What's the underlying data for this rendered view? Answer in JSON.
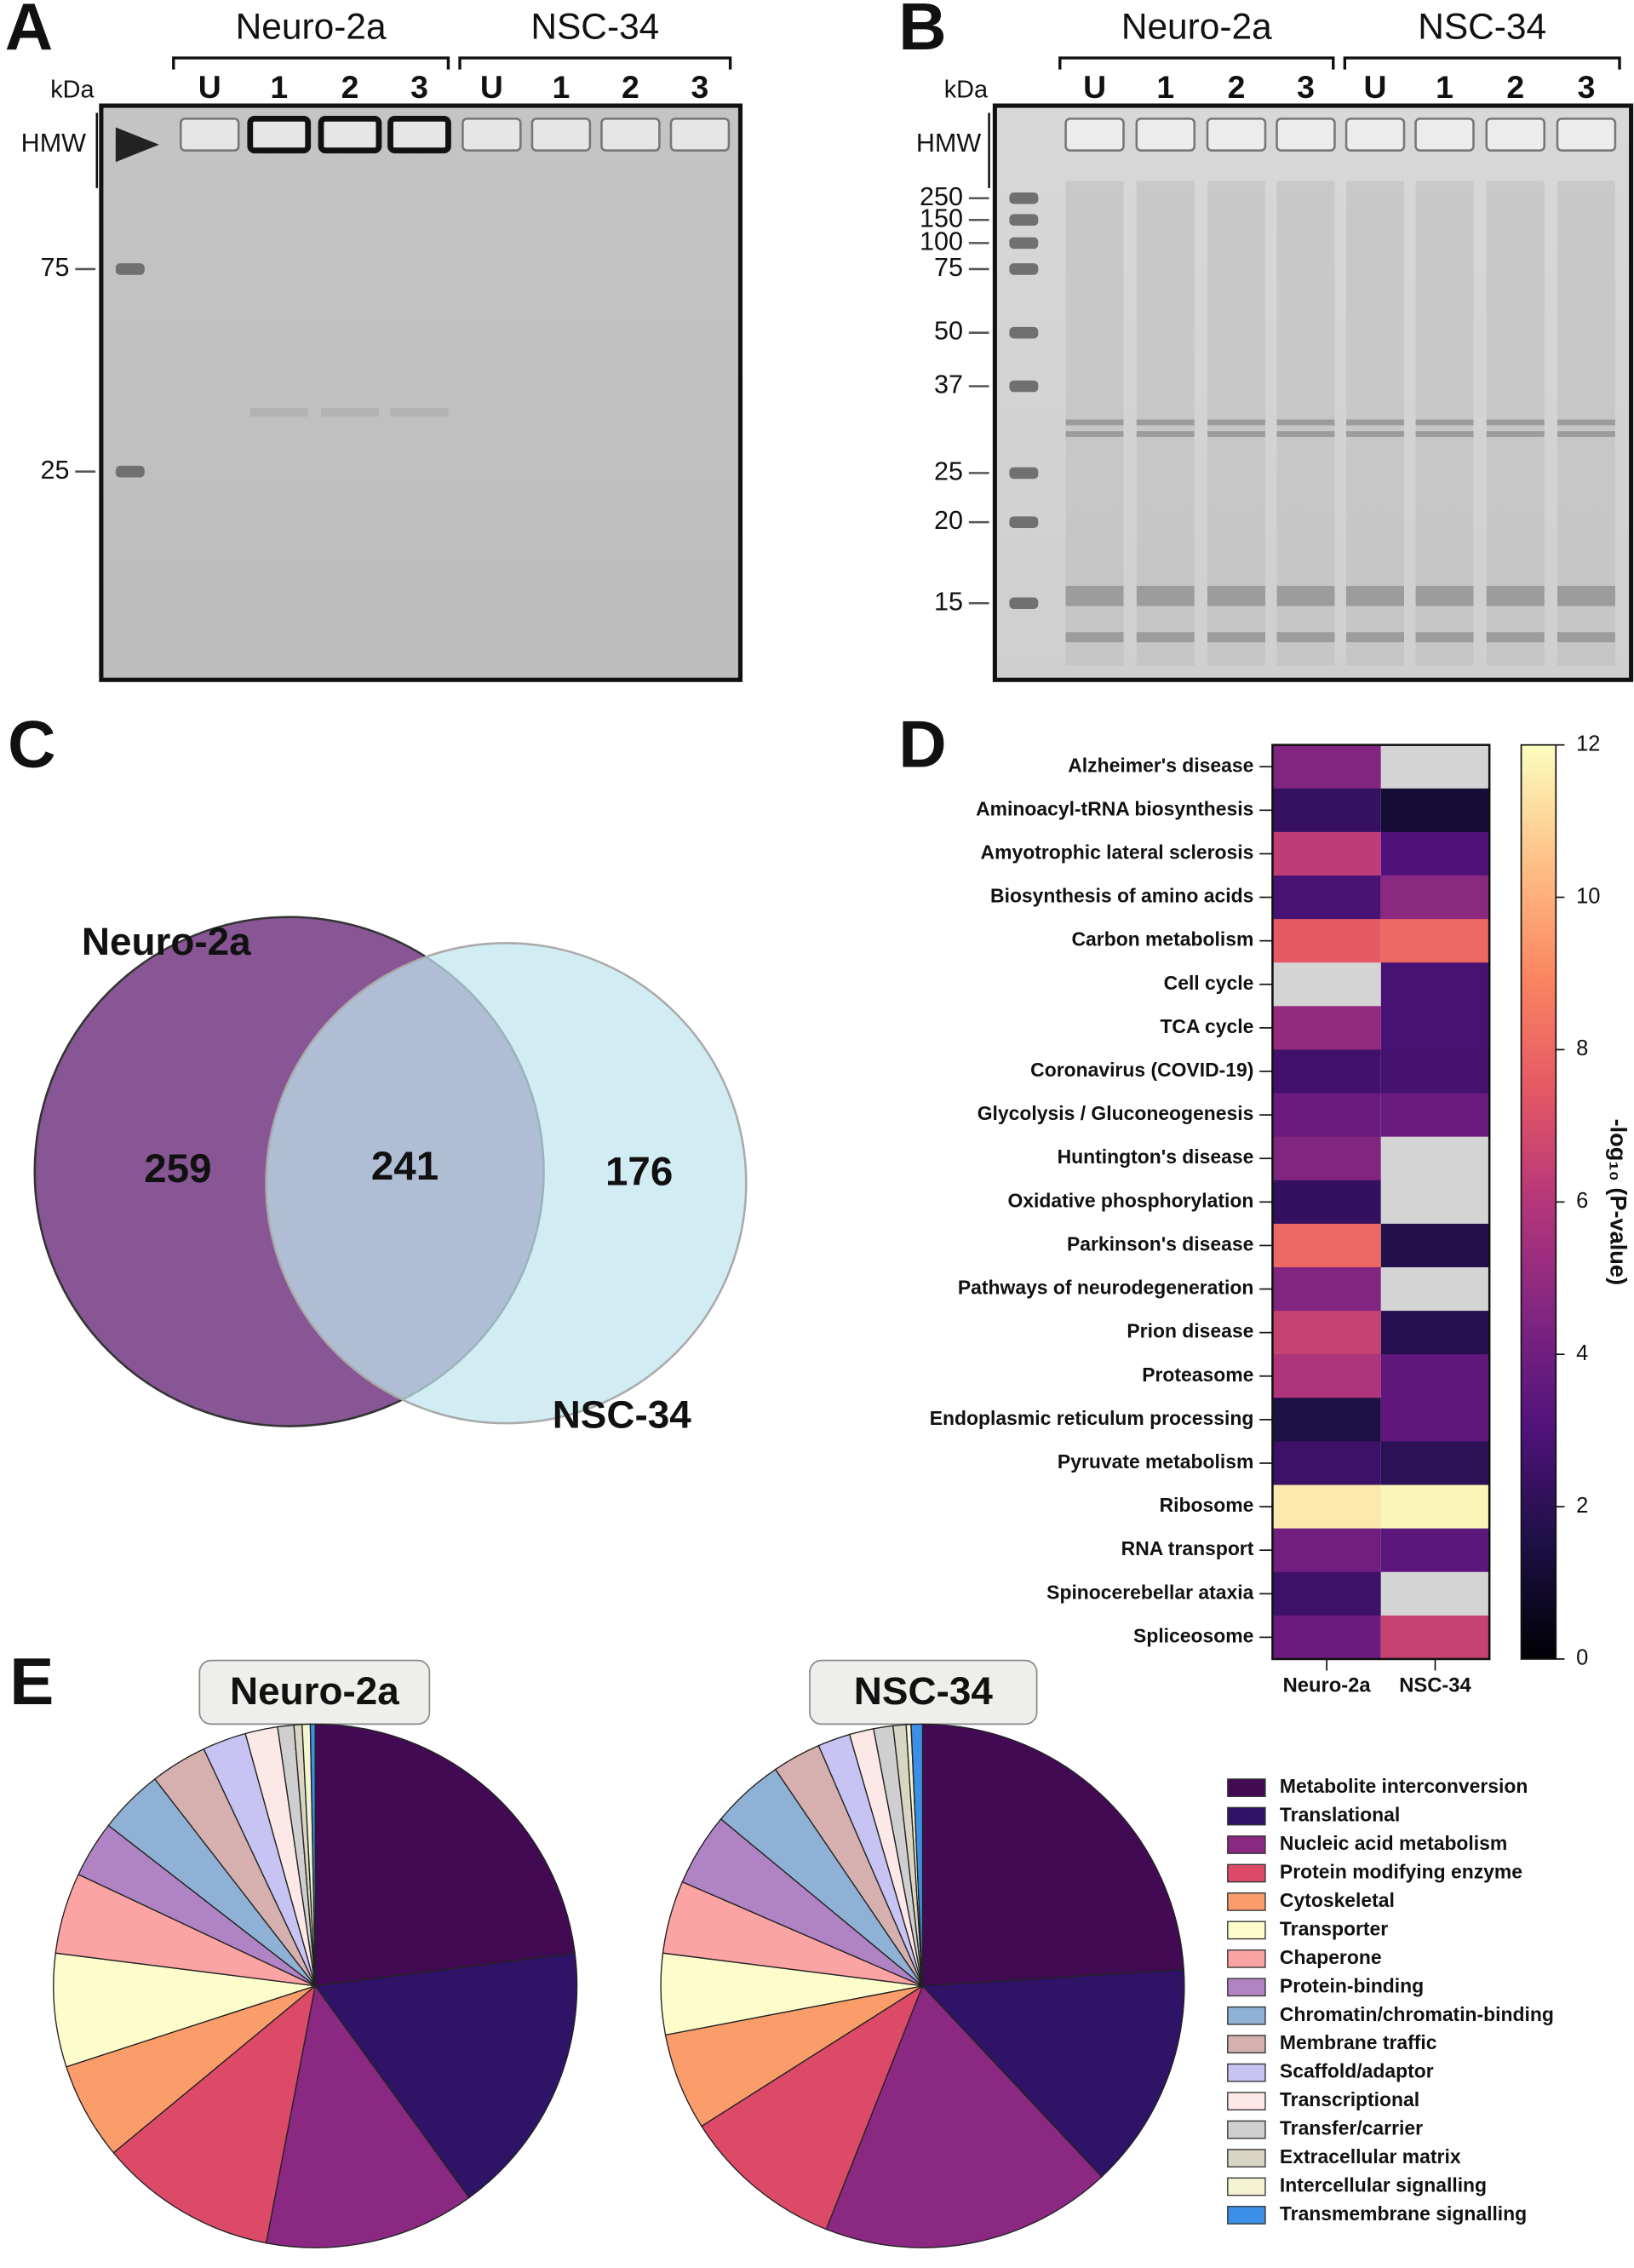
{
  "panel_letters": [
    "A",
    "B",
    "C",
    "D",
    "E"
  ],
  "gels": [
    {
      "kda": "kDa",
      "hmw": "HMW",
      "groups": [
        "Neuro-2a",
        "NSC-34"
      ],
      "lanes": [
        "U",
        "1",
        "2",
        "3",
        "U",
        "1",
        "2",
        "3"
      ],
      "markers": [
        75,
        25
      ]
    },
    {
      "kda": "kDa",
      "hmw": "HMW",
      "groups": [
        "Neuro-2a",
        "NSC-34"
      ],
      "lanes": [
        "U",
        "1",
        "2",
        "3",
        "U",
        "1",
        "2",
        "3"
      ],
      "markers": [
        250,
        150,
        100,
        75,
        50,
        37,
        25,
        20,
        15
      ]
    }
  ],
  "venn": {
    "sets": [
      "Neuro-2a",
      "NSC-34"
    ],
    "values": [
      259,
      241,
      176
    ],
    "colors": [
      "#6a2c7a",
      "#bfe6ef"
    ]
  },
  "heatmap": {
    "type": "heatmap",
    "rows": [
      "Alzheimer's disease",
      "Aminoacyl-tRNA biosynthesis",
      "Amyotrophic lateral sclerosis",
      "Biosynthesis of amino acids",
      "Carbon metabolism",
      "Cell cycle",
      "TCA cycle",
      "Coronavirus (COVID-19)",
      "Glycolysis / Gluconeogenesis",
      "Huntington's disease",
      "Oxidative phosphorylation",
      "Parkinson's disease",
      "Pathways of neurodegeneration",
      "Prion disease",
      "Proteasome",
      "Endoplasmic reticulum processing",
      "Pyruvate metabolism",
      "Ribosome",
      "RNA transport",
      "Spinocerebellar ataxia",
      "Spliceosome"
    ],
    "columns": [
      "Neuro-2a",
      "NSC-34"
    ],
    "values": [
      [
        4.5,
        null
      ],
      [
        2.3,
        1.2
      ],
      [
        6.3,
        3.0
      ],
      [
        2.8,
        4.8
      ],
      [
        7.5,
        8.0
      ],
      [
        null,
        2.8
      ],
      [
        5.0,
        2.8
      ],
      [
        2.6,
        2.7
      ],
      [
        3.8,
        3.8
      ],
      [
        4.5,
        null
      ],
      [
        2.2,
        null
      ],
      [
        8.0,
        1.7
      ],
      [
        4.5,
        null
      ],
      [
        6.5,
        1.8
      ],
      [
        5.8,
        3.5
      ],
      [
        1.5,
        3.5
      ],
      [
        2.5,
        2.0
      ],
      [
        11.5,
        11.8
      ],
      [
        4.0,
        3.4
      ],
      [
        2.5,
        null
      ],
      [
        3.8,
        6.5
      ]
    ],
    "clim": [
      0,
      12
    ],
    "cticks": [
      0,
      2,
      4,
      6,
      8,
      10,
      12
    ],
    "colorbar_label": "-log₁₀ (P-value)",
    "null_color": "#d4d4d4",
    "colormap": [
      "#000004",
      "#1c1044",
      "#4f127b",
      "#812581",
      "#b5367a",
      "#e55964",
      "#fb8761",
      "#fec287",
      "#fcfdbf"
    ]
  },
  "pies": {
    "type": "pie",
    "categories": [
      "Metabolite interconversion",
      "Translational",
      "Nucleic acid metabolism",
      "Protein modifying enzyme",
      "Cytoskeletal",
      "Transporter",
      "Chaperone",
      "Protein-binding",
      "Chromatin/chromatin-binding",
      "Membrane traffic",
      "Scaffold/adaptor",
      "Transcriptional",
      "Transfer/carrier",
      "Extracellular matrix",
      "Intercellular signalling",
      "Transmembrane signalling"
    ],
    "colors": [
      "#420a53",
      "#2f1366",
      "#8a2882",
      "#dc4a68",
      "#fb9d6b",
      "#fdfccb",
      "#fca4a4",
      "#b083c4",
      "#8fb1d6",
      "#d5b0ae",
      "#c7c3f2",
      "#fde8e8",
      "#cfcfcf",
      "#d8d5c2",
      "#f4f4d2",
      "#3b8fe6"
    ],
    "charts": [
      {
        "title": "Neuro-2a",
        "values": [
          23,
          17,
          13,
          11,
          6,
          7,
          5,
          3.5,
          4,
          3.5,
          2.7,
          2,
          1,
          0.5,
          0.5,
          0.3
        ]
      },
      {
        "title": "NSC-34",
        "values": [
          24,
          14,
          18,
          10,
          6,
          5,
          4.5,
          4.5,
          4.5,
          3,
          2,
          1.5,
          1.2,
          0.8,
          0.3,
          0.7
        ]
      }
    ]
  }
}
